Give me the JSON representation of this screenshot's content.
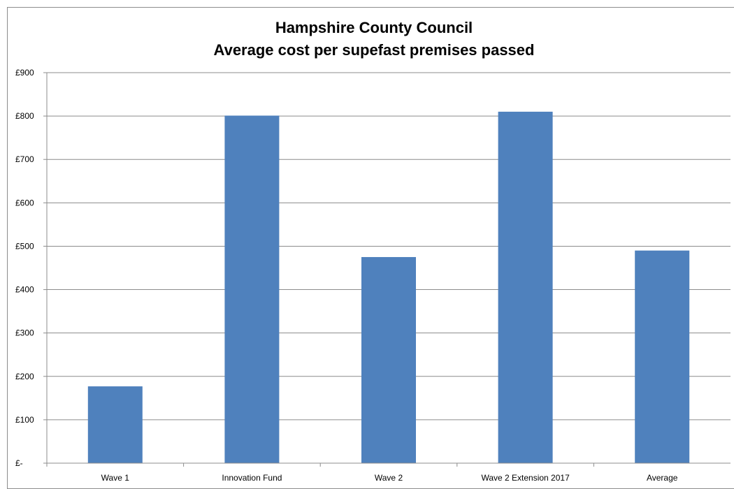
{
  "chart_data": {
    "type": "bar",
    "title": [
      "Hampshire County Council",
      "Average cost per supefast premises passed"
    ],
    "xlabel": "",
    "ylabel": "",
    "categories": [
      "Wave 1",
      "Innovation Fund",
      "Wave 2",
      "Wave 2 Extension 2017",
      "Average"
    ],
    "values": [
      177,
      801,
      475,
      810,
      490
    ],
    "ylim": [
      0,
      900
    ],
    "yticks": [
      0,
      100,
      200,
      300,
      400,
      500,
      600,
      700,
      800,
      900
    ],
    "ytick_labels": [
      "£-",
      "£100",
      "£200",
      "£300",
      "£400",
      "£500",
      "£600",
      "£700",
      "£800",
      "£900"
    ],
    "grid": true,
    "legend": "none",
    "bar_color": "#4f81bd"
  }
}
